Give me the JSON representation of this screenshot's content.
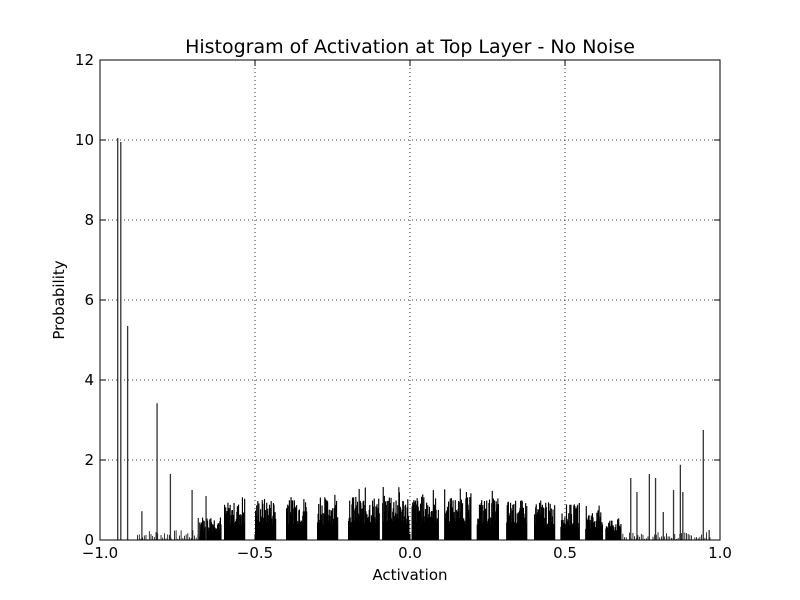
{
  "chart_data": {
    "type": "bar",
    "title": "Histogram of Activation at Top Layer - No Noise",
    "xlabel": "Activation",
    "ylabel": "Probability",
    "xlim": [
      -1.0,
      1.0
    ],
    "ylim": [
      0,
      12
    ],
    "x_ticks": [
      -1.0,
      -0.5,
      0.0,
      0.5,
      1.0
    ],
    "x_tick_labels": [
      "−1.0",
      "−0.5",
      "0.0",
      "0.5",
      "1.0"
    ],
    "y_ticks": [
      0,
      2,
      4,
      6,
      8,
      10,
      12
    ],
    "y_tick_labels": [
      "0",
      "2",
      "4",
      "6",
      "8",
      "10",
      "12"
    ],
    "grid": true,
    "legend": false,
    "bar_color": "#000000",
    "spikes": [
      {
        "x": -0.945,
        "y": 10.05
      },
      {
        "x": -0.935,
        "y": 9.95
      },
      {
        "x": -0.913,
        "y": 5.35
      },
      {
        "x": -0.867,
        "y": 0.72
      },
      {
        "x": -0.818,
        "y": 3.42
      },
      {
        "x": -0.775,
        "y": 1.65
      },
      {
        "x": -0.705,
        "y": 1.25
      },
      {
        "x": -0.685,
        "y": 0.55
      },
      {
        "x": -0.66,
        "y": 1.1
      },
      {
        "x": 0.71,
        "y": 1.55
      },
      {
        "x": 0.73,
        "y": 1.2
      },
      {
        "x": 0.77,
        "y": 1.65
      },
      {
        "x": 0.79,
        "y": 1.55
      },
      {
        "x": 0.815,
        "y": 0.7
      },
      {
        "x": 0.848,
        "y": 1.25
      },
      {
        "x": 0.87,
        "y": 1.88
      },
      {
        "x": 0.878,
        "y": 1.2
      },
      {
        "x": 0.944,
        "y": 2.75
      },
      {
        "x": 0.963,
        "y": 0.25
      }
    ],
    "clusters": [
      {
        "x0": -0.68,
        "x1": -0.61,
        "height": 0.6
      },
      {
        "x0": -0.6,
        "x1": -0.535,
        "height": 0.95
      },
      {
        "x0": -0.5,
        "x1": -0.435,
        "height": 1.05
      },
      {
        "x0": -0.4,
        "x1": -0.335,
        "height": 1.1
      },
      {
        "x0": -0.3,
        "x1": -0.235,
        "height": 1.05
      },
      {
        "x0": -0.2,
        "x1": -0.1,
        "height": 1.1
      },
      {
        "x0": -0.09,
        "x1": -0.005,
        "height": 1.12
      },
      {
        "x0": 0.005,
        "x1": 0.09,
        "height": 1.1
      },
      {
        "x0": 0.11,
        "x1": 0.195,
        "height": 1.08
      },
      {
        "x0": 0.215,
        "x1": 0.285,
        "height": 1.05
      },
      {
        "x0": 0.31,
        "x1": 0.375,
        "height": 1.0
      },
      {
        "x0": 0.4,
        "x1": 0.465,
        "height": 0.95
      },
      {
        "x0": 0.485,
        "x1": 0.545,
        "height": 0.9
      },
      {
        "x0": 0.565,
        "x1": 0.62,
        "height": 0.75
      },
      {
        "x0": 0.63,
        "x1": 0.68,
        "height": 0.55
      }
    ],
    "noise": [
      {
        "x0": -0.88,
        "x1": -0.68,
        "height": 0.25
      },
      {
        "x0": 0.68,
        "x1": 0.97,
        "height": 0.2
      }
    ]
  }
}
